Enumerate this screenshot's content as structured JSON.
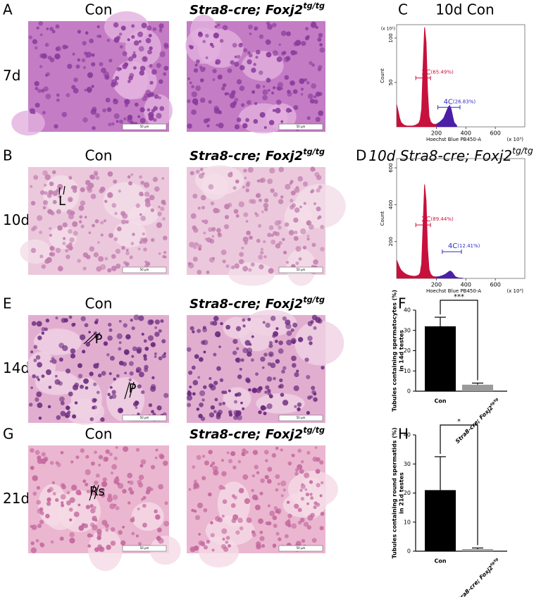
{
  "panels": [
    {
      "letter": "A",
      "row": "7d",
      "con": "Con",
      "mut": {
        "main": "Stra8-cre; Foxj2",
        "sup": "tg/tg"
      },
      "scale": [
        "50 μm",
        "50 μm"
      ],
      "marks": []
    },
    {
      "letter": "B",
      "row": "10d",
      "con": "Con",
      "mut": {
        "main": "Stra8-cre; Foxj2",
        "sup": "tg/tg"
      },
      "scale": [
        "50 μm",
        "50 μm"
      ],
      "marks": [
        "L"
      ]
    },
    {
      "letter": "E",
      "row": "14d",
      "con": "Con",
      "mut": {
        "main": "Stra8-cre; Foxj2",
        "sup": "tg/tg"
      },
      "scale": [
        "50 μm",
        "50 μm"
      ],
      "marks": [
        "P",
        "P"
      ]
    },
    {
      "letter": "G",
      "row": "21d",
      "con": "Con",
      "mut": {
        "main": "Stra8-cre; Foxj2",
        "sup": "tg/tg"
      },
      "scale": [
        "50 μm",
        "50 μm"
      ],
      "marks": [
        "Rs"
      ]
    }
  ],
  "chart_data": [
    {
      "type": "area",
      "letter": "C",
      "title": "10d Con",
      "ylabel": "Count",
      "xlabel": "Hoechst Blue PB450-A",
      "y_unit": "(x 10¹)",
      "x_unit": "(x 10³)",
      "xlim": [
        -70,
        800
      ],
      "ylim": [
        0,
        115
      ],
      "xticks": [
        200,
        400,
        600
      ],
      "yticks": [
        50,
        100
      ],
      "series": [
        {
          "color": "#c8103c",
          "x": [
            -70,
            -60,
            -50,
            -40,
            -20,
            0,
            20,
            40,
            60,
            80,
            90,
            100,
            110,
            120,
            130,
            140,
            150,
            160,
            170,
            180,
            200
          ],
          "values": [
            25,
            18,
            10,
            5,
            2,
            1,
            1,
            1,
            2,
            4,
            8,
            20,
            70,
            112,
            95,
            40,
            12,
            6,
            4,
            3,
            3
          ]
        },
        {
          "color": "#4b1fa8",
          "x": [
            200,
            220,
            240,
            250,
            260,
            270,
            280,
            290,
            300,
            310,
            320,
            340
          ],
          "values": [
            3,
            5,
            8,
            10,
            14,
            18,
            22,
            24,
            20,
            12,
            5,
            1
          ]
        }
      ],
      "gates": [
        {
          "label": "2C",
          "percent": "(65.49%)",
          "color": "#c8103c",
          "range": [
            60,
            160
          ],
          "y": 55
        },
        {
          "label": "4C",
          "percent": "(26.83%)",
          "color": "#2b2bc8",
          "range": [
            210,
            360
          ],
          "y": 22
        }
      ]
    },
    {
      "type": "area",
      "letter": "D",
      "title": {
        "main": "10d Stra8-cre; Foxj2",
        "sup": "tg/tg"
      },
      "ylabel": "Count",
      "xlabel": "Hoechst Blue PB450-A",
      "x_unit": "(x 10³)",
      "xlim": [
        -70,
        800
      ],
      "ylim": [
        0,
        650
      ],
      "xticks": [
        200,
        400,
        600
      ],
      "yticks": [
        200,
        400,
        600
      ],
      "series": [
        {
          "color": "#c8103c",
          "x": [
            -70,
            -60,
            -50,
            -40,
            -20,
            0,
            20,
            40,
            60,
            80,
            90,
            100,
            110,
            120,
            130,
            140,
            150,
            160,
            170,
            180,
            200
          ],
          "values": [
            100,
            80,
            60,
            45,
            30,
            20,
            15,
            12,
            12,
            18,
            30,
            80,
            300,
            510,
            420,
            160,
            50,
            25,
            15,
            10,
            8
          ]
        },
        {
          "color": "#4b1fa8",
          "x": [
            200,
            220,
            240,
            260,
            270,
            280,
            290,
            300,
            310,
            320,
            330,
            350,
            380
          ],
          "values": [
            8,
            10,
            15,
            22,
            28,
            34,
            40,
            38,
            30,
            18,
            8,
            3,
            1
          ]
        }
      ],
      "gates": [
        {
          "label": "2C",
          "percent": "(89.44%)",
          "color": "#c8103c",
          "range": [
            60,
            160
          ],
          "y": 290
        },
        {
          "label": "4C",
          "percent": "(12.41%)",
          "color": "#2b2bc8",
          "range": [
            240,
            370
          ],
          "y": 145
        }
      ]
    },
    {
      "type": "bar",
      "letter": "F",
      "ylabel": [
        "Tubules containing spermatocytes (%)",
        "in 14d testes"
      ],
      "categories": [
        "Con",
        {
          "main": "Stra8-cre; Foxj2",
          "sup": "tg/tg"
        }
      ],
      "values": [
        32,
        3.2
      ],
      "errors": [
        4.5,
        0.8
      ],
      "colors": [
        "#000000",
        "#9a9a9a"
      ],
      "ylim": [
        0,
        40
      ],
      "yticks": [
        0,
        10,
        20,
        30,
        40
      ],
      "significance": "***"
    },
    {
      "type": "bar",
      "letter": "H",
      "ylabel": [
        "Tubules containing round spermatids (%)",
        "in 21d testes"
      ],
      "categories": [
        "Con",
        {
          "main": "Stra8-cre; Foxj2",
          "sup": "tg/tg"
        }
      ],
      "values": [
        21,
        0.7
      ],
      "errors": [
        11.5,
        0.4
      ],
      "colors": [
        "#000000",
        "#9a9a9a"
      ],
      "ylim": [
        0,
        40
      ],
      "yticks": [
        0,
        10,
        20,
        30,
        40
      ],
      "significance": "*"
    }
  ]
}
